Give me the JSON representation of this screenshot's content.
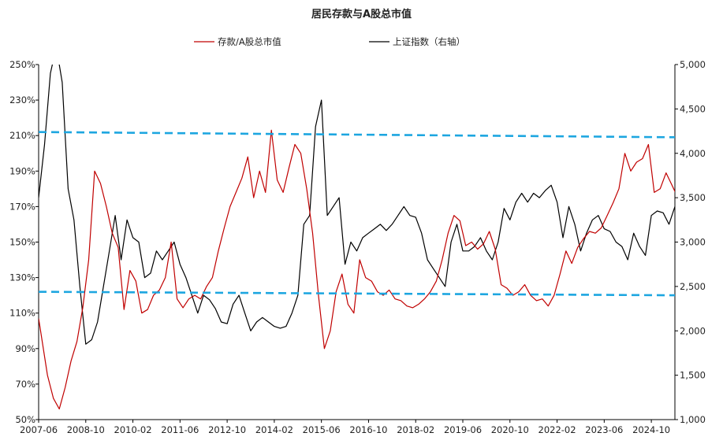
{
  "chart_data": {
    "type": "line",
    "title": "居民存款与A股总市值",
    "legend": {
      "placement": "top-center"
    },
    "grid": false,
    "x_ticks": [
      "2007-06",
      "2008-10",
      "2010-02",
      "2011-06",
      "2012-10",
      "2014-02",
      "2015-06",
      "2016-10",
      "2018-02",
      "2019-06",
      "2020-10",
      "2022-02",
      "2023-06",
      "2024-10"
    ],
    "x_range": [
      "2007-06",
      "2025-06"
    ],
    "y_left": {
      "range": [
        50,
        250
      ],
      "unit": "%",
      "ticks": [
        "50%",
        "70%",
        "90%",
        "110%",
        "130%",
        "150%",
        "170%",
        "190%",
        "210%",
        "230%",
        "250%"
      ]
    },
    "y_right": {
      "range": [
        1000,
        5000
      ],
      "ticks": [
        "1,000",
        "1,500",
        "2,000",
        "2,500",
        "3,000",
        "3,500",
        "4,000",
        "4,500",
        "5,000"
      ]
    },
    "series": [
      {
        "name": "存款/A股总市值",
        "axis": "left",
        "color": "#c00000",
        "values": [
          [
            "2007-06",
            107
          ],
          [
            "2007-09",
            75
          ],
          [
            "2007-11",
            62
          ],
          [
            "2008-01",
            56
          ],
          [
            "2008-03",
            68
          ],
          [
            "2008-05",
            83
          ],
          [
            "2008-07",
            94
          ],
          [
            "2008-09",
            113
          ],
          [
            "2008-11",
            140
          ],
          [
            "2009-01",
            190
          ],
          [
            "2009-03",
            183
          ],
          [
            "2009-05",
            170
          ],
          [
            "2009-07",
            155
          ],
          [
            "2009-09",
            147
          ],
          [
            "2009-11",
            112
          ],
          [
            "2010-01",
            134
          ],
          [
            "2010-03",
            128
          ],
          [
            "2010-05",
            110
          ],
          [
            "2010-07",
            112
          ],
          [
            "2010-09",
            120
          ],
          [
            "2010-11",
            123
          ],
          [
            "2011-01",
            130
          ],
          [
            "2011-03",
            150
          ],
          [
            "2011-05",
            118
          ],
          [
            "2011-07",
            113
          ],
          [
            "2011-09",
            118
          ],
          [
            "2011-11",
            120
          ],
          [
            "2012-01",
            118
          ],
          [
            "2012-03",
            125
          ],
          [
            "2012-05",
            130
          ],
          [
            "2012-07",
            145
          ],
          [
            "2012-09",
            158
          ],
          [
            "2012-11",
            170
          ],
          [
            "2013-01",
            178
          ],
          [
            "2013-03",
            186
          ],
          [
            "2013-05",
            198
          ],
          [
            "2013-07",
            175
          ],
          [
            "2013-09",
            190
          ],
          [
            "2013-11",
            178
          ],
          [
            "2014-01",
            213
          ],
          [
            "2014-03",
            185
          ],
          [
            "2014-05",
            178
          ],
          [
            "2014-07",
            192
          ],
          [
            "2014-09",
            205
          ],
          [
            "2014-11",
            200
          ],
          [
            "2015-01",
            180
          ],
          [
            "2015-03",
            155
          ],
          [
            "2015-05",
            120
          ],
          [
            "2015-07",
            90
          ],
          [
            "2015-09",
            100
          ],
          [
            "2015-11",
            122
          ],
          [
            "2016-01",
            132
          ],
          [
            "2016-03",
            115
          ],
          [
            "2016-05",
            110
          ],
          [
            "2016-07",
            140
          ],
          [
            "2016-09",
            130
          ],
          [
            "2016-11",
            128
          ],
          [
            "2017-01",
            122
          ],
          [
            "2017-03",
            120
          ],
          [
            "2017-05",
            123
          ],
          [
            "2017-07",
            118
          ],
          [
            "2017-09",
            117
          ],
          [
            "2017-11",
            114
          ],
          [
            "2018-01",
            113
          ],
          [
            "2018-03",
            115
          ],
          [
            "2018-05",
            118
          ],
          [
            "2018-07",
            122
          ],
          [
            "2018-09",
            128
          ],
          [
            "2018-11",
            140
          ],
          [
            "2019-01",
            155
          ],
          [
            "2019-03",
            165
          ],
          [
            "2019-05",
            162
          ],
          [
            "2019-07",
            148
          ],
          [
            "2019-09",
            150
          ],
          [
            "2019-11",
            146
          ],
          [
            "2020-01",
            149
          ],
          [
            "2020-03",
            156
          ],
          [
            "2020-05",
            146
          ],
          [
            "2020-07",
            126
          ],
          [
            "2020-09",
            124
          ],
          [
            "2020-11",
            120
          ],
          [
            "2021-01",
            122
          ],
          [
            "2021-03",
            126
          ],
          [
            "2021-05",
            120
          ],
          [
            "2021-07",
            117
          ],
          [
            "2021-09",
            118
          ],
          [
            "2021-11",
            114
          ],
          [
            "2022-01",
            120
          ],
          [
            "2022-03",
            132
          ],
          [
            "2022-05",
            145
          ],
          [
            "2022-07",
            138
          ],
          [
            "2022-09",
            147
          ],
          [
            "2022-11",
            152
          ],
          [
            "2023-01",
            156
          ],
          [
            "2023-03",
            155
          ],
          [
            "2023-05",
            158
          ],
          [
            "2023-07",
            165
          ],
          [
            "2023-09",
            172
          ],
          [
            "2023-11",
            180
          ],
          [
            "2024-01",
            200
          ],
          [
            "2024-03",
            190
          ],
          [
            "2024-05",
            195
          ],
          [
            "2024-07",
            197
          ],
          [
            "2024-09",
            205
          ],
          [
            "2024-11",
            178
          ],
          [
            "2025-01",
            180
          ],
          [
            "2025-03",
            189
          ],
          [
            "2025-05",
            182
          ],
          [
            "2025-07",
            175
          ],
          [
            "2025-09",
            157
          ]
        ]
      },
      {
        "name": "上证指数（右轴）",
        "axis": "right",
        "color": "#000000",
        "values": [
          [
            "2007-06",
            3500
          ],
          [
            "2007-08",
            4100
          ],
          [
            "2007-10",
            4900
          ],
          [
            "2007-12",
            5200
          ],
          [
            "2008-02",
            4800
          ],
          [
            "2008-04",
            3600
          ],
          [
            "2008-06",
            3250
          ],
          [
            "2008-08",
            2500
          ],
          [
            "2008-10",
            1850
          ],
          [
            "2008-12",
            1900
          ],
          [
            "2009-02",
            2100
          ],
          [
            "2009-04",
            2500
          ],
          [
            "2009-06",
            2900
          ],
          [
            "2009-08",
            3300
          ],
          [
            "2009-10",
            2800
          ],
          [
            "2009-12",
            3250
          ],
          [
            "2010-02",
            3050
          ],
          [
            "2010-04",
            3000
          ],
          [
            "2010-06",
            2600
          ],
          [
            "2010-08",
            2650
          ],
          [
            "2010-10",
            2900
          ],
          [
            "2010-12",
            2800
          ],
          [
            "2011-02",
            2900
          ],
          [
            "2011-04",
            3000
          ],
          [
            "2011-06",
            2750
          ],
          [
            "2011-08",
            2600
          ],
          [
            "2011-10",
            2400
          ],
          [
            "2011-12",
            2200
          ],
          [
            "2012-02",
            2400
          ],
          [
            "2012-04",
            2350
          ],
          [
            "2012-06",
            2250
          ],
          [
            "2012-08",
            2100
          ],
          [
            "2012-10",
            2080
          ],
          [
            "2012-12",
            2300
          ],
          [
            "2013-02",
            2400
          ],
          [
            "2013-04",
            2200
          ],
          [
            "2013-06",
            2000
          ],
          [
            "2013-08",
            2100
          ],
          [
            "2013-10",
            2150
          ],
          [
            "2013-12",
            2100
          ],
          [
            "2014-02",
            2050
          ],
          [
            "2014-04",
            2030
          ],
          [
            "2014-06",
            2050
          ],
          [
            "2014-08",
            2200
          ],
          [
            "2014-10",
            2400
          ],
          [
            "2014-12",
            3200
          ],
          [
            "2015-02",
            3300
          ],
          [
            "2015-04",
            4300
          ],
          [
            "2015-06",
            4600
          ],
          [
            "2015-08",
            3300
          ],
          [
            "2015-10",
            3400
          ],
          [
            "2015-12",
            3500
          ],
          [
            "2016-02",
            2750
          ],
          [
            "2016-04",
            3000
          ],
          [
            "2016-06",
            2900
          ],
          [
            "2016-08",
            3050
          ],
          [
            "2016-10",
            3100
          ],
          [
            "2016-12",
            3150
          ],
          [
            "2017-02",
            3200
          ],
          [
            "2017-04",
            3130
          ],
          [
            "2017-06",
            3200
          ],
          [
            "2017-08",
            3300
          ],
          [
            "2017-10",
            3400
          ],
          [
            "2017-12",
            3300
          ],
          [
            "2018-02",
            3280
          ],
          [
            "2018-04",
            3100
          ],
          [
            "2018-06",
            2800
          ],
          [
            "2018-08",
            2700
          ],
          [
            "2018-10",
            2600
          ],
          [
            "2018-12",
            2500
          ],
          [
            "2019-02",
            3000
          ],
          [
            "2019-04",
            3200
          ],
          [
            "2019-06",
            2900
          ],
          [
            "2019-08",
            2900
          ],
          [
            "2019-10",
            2950
          ],
          [
            "2019-12",
            3050
          ],
          [
            "2020-02",
            2900
          ],
          [
            "2020-04",
            2800
          ],
          [
            "2020-06",
            3000
          ],
          [
            "2020-08",
            3380
          ],
          [
            "2020-10",
            3250
          ],
          [
            "2020-12",
            3450
          ],
          [
            "2021-02",
            3550
          ],
          [
            "2021-04",
            3450
          ],
          [
            "2021-06",
            3550
          ],
          [
            "2021-08",
            3500
          ],
          [
            "2021-10",
            3580
          ],
          [
            "2021-12",
            3640
          ],
          [
            "2022-02",
            3450
          ],
          [
            "2022-04",
            3050
          ],
          [
            "2022-06",
            3400
          ],
          [
            "2022-08",
            3200
          ],
          [
            "2022-10",
            2900
          ],
          [
            "2022-12",
            3100
          ],
          [
            "2023-02",
            3250
          ],
          [
            "2023-04",
            3300
          ],
          [
            "2023-06",
            3150
          ],
          [
            "2023-08",
            3120
          ],
          [
            "2023-10",
            3000
          ],
          [
            "2023-12",
            2950
          ],
          [
            "2024-02",
            2800
          ],
          [
            "2024-04",
            3100
          ],
          [
            "2024-06",
            2950
          ],
          [
            "2024-08",
            2850
          ],
          [
            "2024-10",
            3300
          ],
          [
            "2024-12",
            3350
          ],
          [
            "2025-02",
            3330
          ],
          [
            "2025-04",
            3200
          ],
          [
            "2025-06",
            3400
          ],
          [
            "2025-08",
            3550
          ]
        ]
      }
    ],
    "reference_lines": [
      {
        "color": "#1da6e0",
        "style": "dashed",
        "axis": "left",
        "from": [
          "2007-06",
          212
        ],
        "to": [
          "2025-09",
          209
        ]
      },
      {
        "color": "#1da6e0",
        "style": "dashed",
        "axis": "left",
        "from": [
          "2007-06",
          122
        ],
        "to": [
          "2025-09",
          120
        ]
      }
    ]
  }
}
